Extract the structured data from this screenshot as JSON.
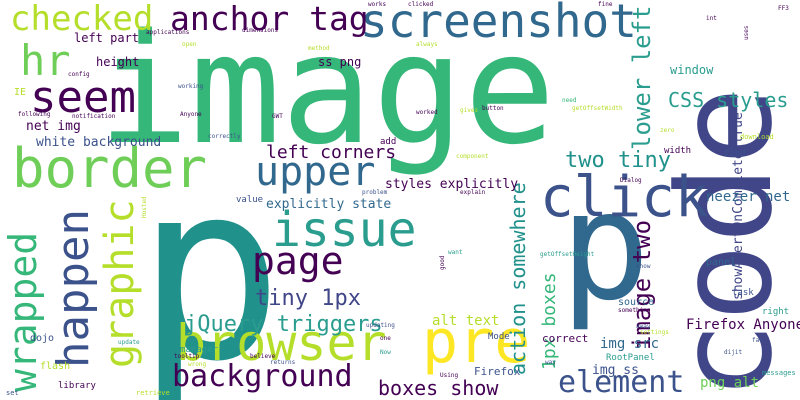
{
  "palette": {
    "dark_purple": "#440154",
    "indigo": "#3b528b",
    "slate_blue": "#404688",
    "teal_blue": "#31688e",
    "teal": "#21918c",
    "sea_green": "#2a9d8f",
    "green": "#35b779",
    "lime": "#6ece58",
    "yellow_green": "#b5de2b",
    "yellow": "#fde725"
  },
  "words": {
    "image": "image",
    "p": "p",
    "code": "code",
    "border": "border",
    "screenshot": "screenshot",
    "anchor_tag": "anchor tag",
    "checked": "checked",
    "hr": "hr",
    "seem": "seem",
    "upper": "upper",
    "issue": "issue",
    "page": "page",
    "browser": "browser",
    "pre": "pre",
    "click": "click",
    "background": "background",
    "element": "element",
    "wrapped": "wrapped",
    "happen": "happen",
    "graphic": "graphic",
    "left_corners": "left corners",
    "two_tiny": "two tiny",
    "css_styles": "CSS styles",
    "tiny_1px": "tiny 1px",
    "jquery_triggers": "jQuery triggers",
    "boxes_show": "boxes show",
    "image_two": "image two",
    "lower_left": "lower left",
    "action_somewhere": "action somewhere",
    "onepx_boxes": "1px boxes",
    "alt_text": "alt text",
    "firefox_anyone": "Firefox Anyone",
    "neezer_net": "neezer net",
    "png_alt": "png alt",
    "img_src": "img src",
    "img_ss": "img ss",
    "styles_explicitly": "styles explicitly",
    "explicitly_state": "explicitly state",
    "white_background": "white background",
    "net_img": "net img",
    "left_part": "left part",
    "height": "height",
    "ss_png": "ss png",
    "window": "window",
    "correct": "correct",
    "ie": "IE",
    "firefox": "Firefox",
    "dojo": "dojo",
    "flash": "flash",
    "library": "library",
    "set": "set",
    "retrieve": "retrieve",
    "manager": "manager",
    "mode": "Mode",
    "showalertoncomplete_true": "showAlertOnComplete true",
    "panel": "panel",
    "task": "task",
    "source": "source",
    "something": "something",
    "show": "show",
    "away": "away",
    "dijit": "dijit",
    "right": "right",
    "far": "far",
    "rootpanel": "RootPanel",
    "way": "way",
    "using": "Using",
    "now": "Now",
    "one": "one",
    "width": "width",
    "find": "find",
    "download": "download",
    "zero": "zero",
    "messages": "messages",
    "add": "add",
    "value": "value",
    "update": "update",
    "believe": "believe",
    "returns": "returns",
    "updating": "updating",
    "tooltip": "tooltip",
    "wrong": "wrong",
    "good": "good",
    "want": "want",
    "getoffsetheight": "getOffsetHeight",
    "dialog": "Dialog",
    "settings": "settings",
    "component": "component",
    "explain": "explain",
    "gwt": "GWT",
    "problem": "problem",
    "hosted": "Hosted",
    "correctly": "correctly",
    "worked": "worked",
    "gives": "gives",
    "button": "button",
    "getoffsetwidth": "getOffsetWidth",
    "need": "need",
    "anyone": "Anyone",
    "working": "working",
    "config": "config",
    "notification": "notification",
    "following": "following",
    "applications": "applications",
    "open": "open",
    "dimensions": "dimensions",
    "works": "works",
    "clicked": "clicked",
    "method": "method",
    "always": "always",
    "fine": "fine",
    "int": "int",
    "uses": "uses",
    "ff3": "FF3"
  }
}
